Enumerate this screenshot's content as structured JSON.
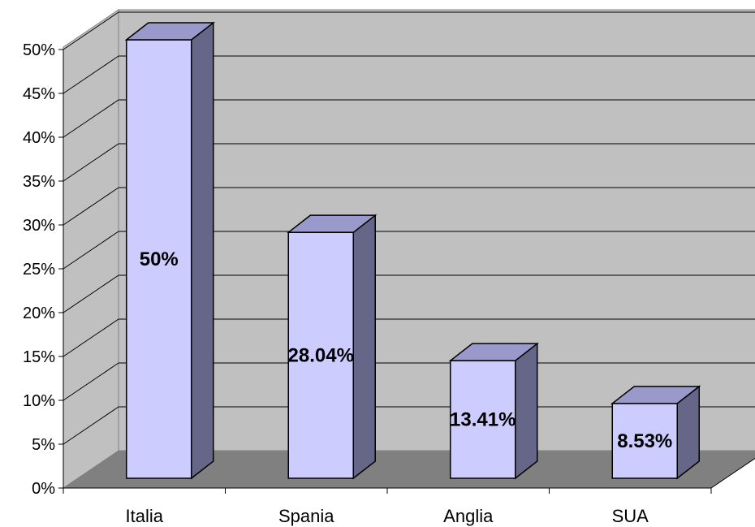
{
  "chart_data": {
    "type": "bar",
    "style": "3d-column",
    "categories": [
      "Italia",
      "Spania",
      "Anglia",
      "SUA"
    ],
    "values": [
      50,
      28.04,
      13.41,
      8.53
    ],
    "data_labels": [
      "50%",
      "28.04%",
      "13.41%",
      "8.53%"
    ],
    "ylim": [
      0,
      50
    ],
    "y_ticks": [
      "0%",
      "5%",
      "10%",
      "15%",
      "20%",
      "25%",
      "30%",
      "35%",
      "40%",
      "45%",
      "50%"
    ],
    "grid": true,
    "legend": "none",
    "title": "",
    "xlabel": "",
    "ylabel": ""
  },
  "colors": {
    "wall": "#c0c0c0",
    "floor": "#808080",
    "bar_front": "#ccccff",
    "bar_top": "#9999cc",
    "bar_side": "#666688",
    "grid": "#000000"
  }
}
